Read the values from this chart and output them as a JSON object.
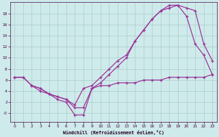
{
  "background_color": "#ceeaea",
  "grid_color": "#aacccc",
  "line_color": "#993399",
  "xlabel": "Windchill (Refroidissement éolien,°C)",
  "xlim": [
    -0.5,
    23.5
  ],
  "ylim": [
    -1.5,
    20
  ],
  "yticks": [
    0,
    2,
    4,
    6,
    8,
    10,
    12,
    14,
    16,
    18
  ],
  "xticks": [
    0,
    1,
    2,
    3,
    4,
    5,
    6,
    7,
    8,
    9,
    10,
    11,
    12,
    13,
    14,
    15,
    16,
    17,
    18,
    19,
    20,
    21,
    22,
    23
  ],
  "series1_x": [
    0,
    1,
    2,
    3,
    4,
    5,
    6,
    7,
    8,
    9,
    10,
    11,
    12,
    13,
    14,
    15,
    16,
    17,
    18,
    19,
    20,
    21,
    22,
    23
  ],
  "series1_y": [
    6.5,
    6.5,
    5.0,
    4.5,
    3.5,
    3.0,
    2.5,
    1.5,
    4.5,
    5.0,
    6.5,
    8.0,
    9.5,
    10.5,
    13.0,
    15.0,
    17.0,
    18.5,
    19.0,
    19.5,
    17.5,
    12.5,
    10.5,
    7.0
  ],
  "series2_x": [
    0,
    1,
    2,
    3,
    4,
    5,
    6,
    7,
    8,
    9,
    10,
    11,
    12,
    13,
    14,
    15,
    16,
    17,
    18,
    19,
    20,
    21,
    22,
    23
  ],
  "series2_y": [
    6.5,
    6.5,
    5.0,
    4.5,
    3.5,
    3.0,
    2.5,
    1.0,
    1.0,
    4.5,
    5.5,
    7.0,
    8.5,
    10.0,
    13.0,
    15.0,
    17.0,
    18.5,
    19.5,
    19.5,
    19.0,
    18.5,
    12.5,
    9.5
  ],
  "series3_x": [
    2,
    3,
    4,
    5,
    6,
    7,
    8,
    9,
    10,
    11,
    12,
    13,
    14,
    15,
    16,
    17,
    18,
    19,
    20,
    21,
    22,
    23
  ],
  "series3_y": [
    5.0,
    4.0,
    3.5,
    2.5,
    2.0,
    -0.3,
    -0.3,
    4.5,
    5.0,
    5.0,
    5.5,
    5.5,
    5.5,
    6.0,
    6.0,
    6.0,
    6.5,
    6.5,
    6.5,
    6.5,
    6.5,
    7.0
  ]
}
